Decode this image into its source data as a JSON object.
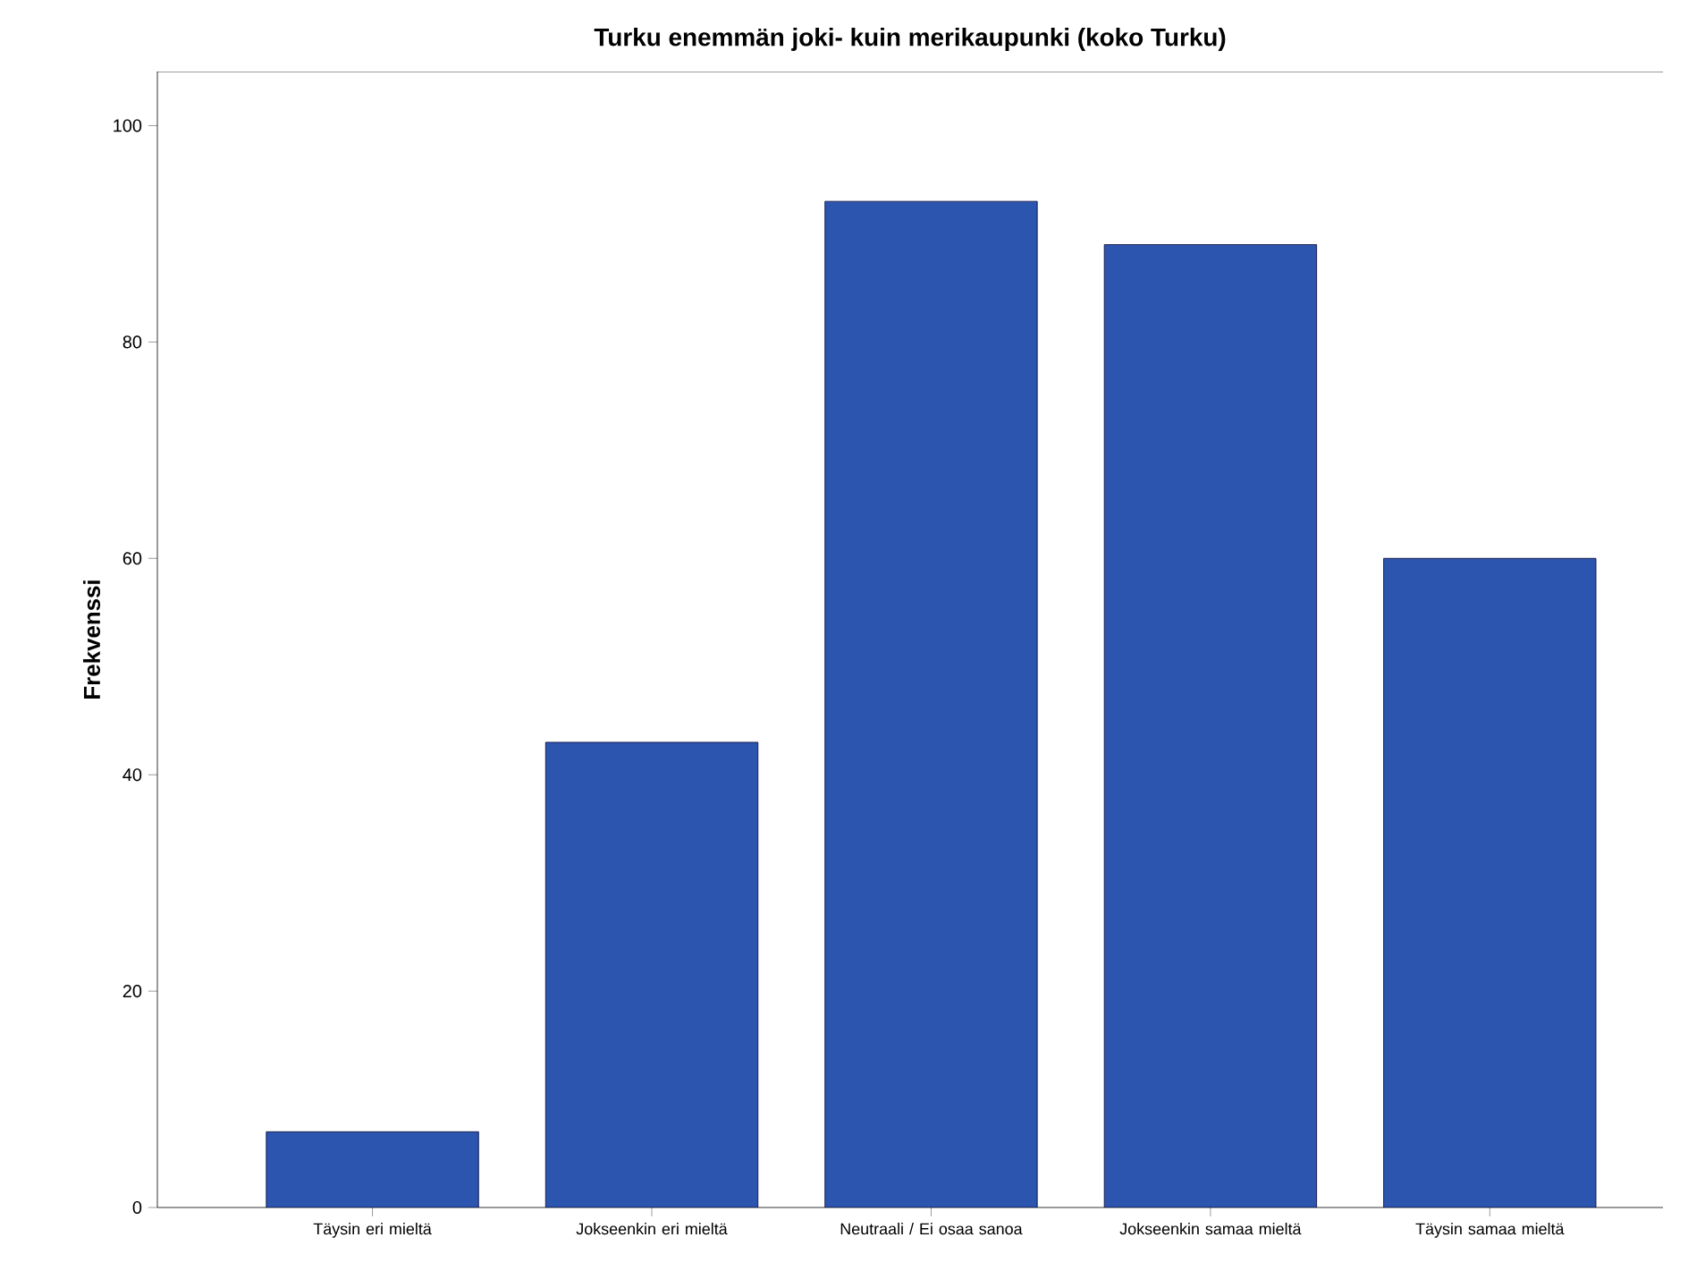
{
  "chart_data": {
    "type": "bar",
    "title": "Turku enemmän joki- kuin merikaupunki (koko Turku)",
    "ylabel": "Frekvenssi",
    "categories": [
      "Täysin eri mieltä",
      "Jokseenkin eri mieltä",
      "Neutraali / Ei osaa sanoa",
      "Jokseenkin samaa mieltä",
      "Täysin samaa mieltä"
    ],
    "values": [
      7,
      43,
      93,
      89,
      60
    ],
    "color": "#2b55ae",
    "ylim": [
      0,
      105
    ],
    "yticks": [
      0,
      20,
      40,
      60,
      80,
      100
    ],
    "grid": false
  }
}
